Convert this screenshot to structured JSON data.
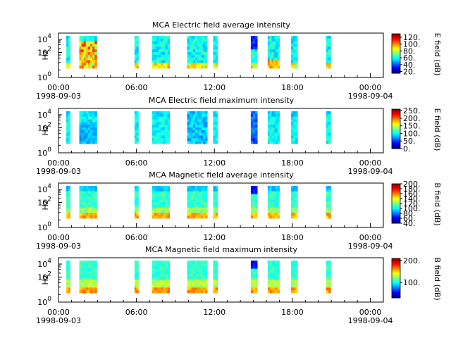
{
  "time_axis": {
    "ticks": [
      "00:00",
      "06:00",
      "12:00",
      "18:00",
      "00:00"
    ],
    "tick_hours": [
      0,
      6,
      12,
      18,
      24
    ],
    "start_date": "1998-09-03",
    "end_date": "1998-09-04",
    "range_hours": [
      0,
      25
    ]
  },
  "chart_data": [
    {
      "type": "heatmap",
      "title": "MCA  Electric field average intensity",
      "ylabel": "Hz",
      "y_ticks": [
        "10",
        "10",
        "10"
      ],
      "y_tick_exps": [
        "0",
        "2",
        "4"
      ],
      "colorbar_label": "E field (dB)",
      "colorbar_ticks": [
        "120.",
        "100.",
        "80.",
        "60.",
        "40.",
        "20."
      ],
      "colorbar_range": [
        15,
        130
      ],
      "colorbar_tick_values": [
        120,
        100,
        80,
        60,
        40,
        20
      ],
      "variant": "e_avg",
      "data_blocks_hours": [
        [
          0.6,
          0.9
        ],
        [
          1.6,
          2.95
        ],
        [
          5.85,
          6.15
        ],
        [
          7.2,
          8.55
        ],
        [
          9.9,
          11.45
        ],
        [
          11.9,
          12.25
        ],
        [
          14.8,
          15.3
        ],
        [
          16.1,
          17.0
        ],
        [
          17.9,
          18.4
        ],
        [
          20.6,
          20.95
        ]
      ]
    },
    {
      "type": "heatmap",
      "title": "MCA  Electric field maximum intensity",
      "ylabel": "Hz",
      "y_ticks": [
        "10",
        "10",
        "10"
      ],
      "y_tick_exps": [
        "0",
        "2",
        "4"
      ],
      "colorbar_label": "E field (dB)",
      "colorbar_ticks": [
        "250.",
        "200.",
        "150.",
        "100.",
        "50.",
        "0."
      ],
      "colorbar_range": [
        0,
        260
      ],
      "colorbar_tick_values": [
        250,
        200,
        150,
        100,
        50,
        0
      ],
      "variant": "e_max",
      "data_blocks_hours": [
        [
          0.6,
          0.9
        ],
        [
          1.6,
          2.95
        ],
        [
          5.85,
          6.15
        ],
        [
          7.2,
          8.55
        ],
        [
          9.9,
          11.45
        ],
        [
          11.9,
          12.25
        ],
        [
          14.8,
          15.3
        ],
        [
          16.1,
          17.0
        ],
        [
          17.9,
          18.4
        ],
        [
          20.6,
          20.95
        ]
      ]
    },
    {
      "type": "heatmap",
      "title": "MCA  Magnetic field average intensity",
      "ylabel": "Hz",
      "y_ticks": [
        "10",
        "10",
        "10"
      ],
      "y_tick_exps": [
        "0",
        "2",
        "4"
      ],
      "colorbar_label": "B field (dB)",
      "colorbar_ticks": [
        "200.",
        "180.",
        "160.",
        "140.",
        "120.",
        "100.",
        "80.",
        "60.",
        "40."
      ],
      "colorbar_range": [
        40,
        200
      ],
      "colorbar_tick_values": [
        200,
        180,
        160,
        140,
        120,
        100,
        80,
        60,
        40
      ],
      "variant": "b_avg",
      "data_blocks_hours": [
        [
          0.6,
          0.9
        ],
        [
          1.6,
          2.95
        ],
        [
          5.85,
          6.15
        ],
        [
          7.2,
          8.55
        ],
        [
          9.9,
          11.45
        ],
        [
          11.9,
          12.25
        ],
        [
          14.8,
          15.3
        ],
        [
          16.1,
          17.0
        ],
        [
          17.9,
          18.4
        ],
        [
          20.6,
          20.95
        ]
      ]
    },
    {
      "type": "heatmap",
      "title": "MCA  Magnetic field maximum intensity",
      "ylabel": "Hz",
      "y_ticks": [
        "10",
        "10",
        "10"
      ],
      "y_tick_exps": [
        "0",
        "2",
        "4"
      ],
      "colorbar_label": "B field (dB)",
      "colorbar_ticks": [
        "200.",
        "100."
      ],
      "colorbar_range": [
        30,
        210
      ],
      "colorbar_tick_values": [
        200,
        100
      ],
      "variant": "b_max",
      "data_blocks_hours": [
        [
          0.6,
          0.9
        ],
        [
          1.6,
          2.95
        ],
        [
          5.85,
          6.15
        ],
        [
          7.2,
          8.55
        ],
        [
          9.9,
          11.45
        ],
        [
          11.9,
          12.25
        ],
        [
          14.8,
          15.3
        ],
        [
          16.1,
          17.0
        ],
        [
          17.9,
          18.4
        ],
        [
          20.6,
          20.95
        ]
      ]
    }
  ]
}
